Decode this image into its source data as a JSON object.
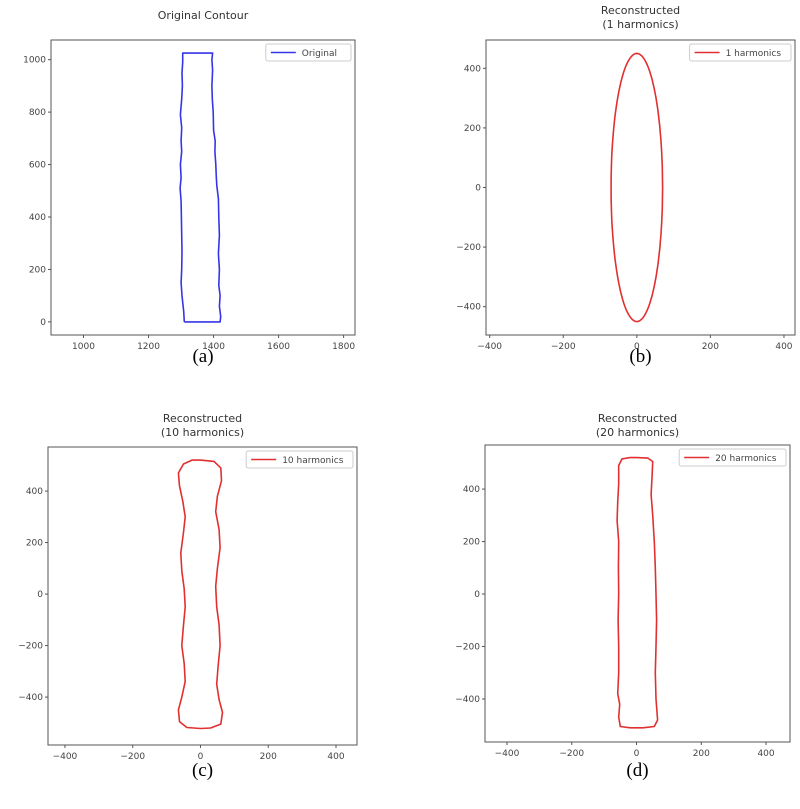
{
  "chart_data": [
    {
      "id": "a",
      "type": "line",
      "caption": "(a)",
      "title_lines": [
        "Original Contour"
      ],
      "legend": {
        "label": "Original",
        "placement": "upper-right"
      },
      "color": "#3535e8",
      "xlim": [
        900,
        1835
      ],
      "ylim": [
        -50,
        1075
      ],
      "xticks": [
        1000,
        1200,
        1400,
        1600,
        1800
      ],
      "yticks": [
        0,
        200,
        400,
        600,
        800,
        1000
      ],
      "points": [
        [
          1310,
          0
        ],
        [
          1420,
          0
        ],
        [
          1422,
          20
        ],
        [
          1418,
          60
        ],
        [
          1420,
          100
        ],
        [
          1416,
          140
        ],
        [
          1418,
          200
        ],
        [
          1415,
          260
        ],
        [
          1418,
          330
        ],
        [
          1416,
          400
        ],
        [
          1415,
          470
        ],
        [
          1410,
          520
        ],
        [
          1408,
          560
        ],
        [
          1407,
          600
        ],
        [
          1404,
          650
        ],
        [
          1405,
          690
        ],
        [
          1400,
          730
        ],
        [
          1399,
          800
        ],
        [
          1396,
          850
        ],
        [
          1395,
          900
        ],
        [
          1397,
          960
        ],
        [
          1395,
          1000
        ],
        [
          1397,
          1025
        ],
        [
          1305,
          1025
        ],
        [
          1305,
          990
        ],
        [
          1303,
          950
        ],
        [
          1304,
          900
        ],
        [
          1302,
          850
        ],
        [
          1298,
          790
        ],
        [
          1302,
          740
        ],
        [
          1300,
          690
        ],
        [
          1302,
          650
        ],
        [
          1298,
          600
        ],
        [
          1300,
          550
        ],
        [
          1297,
          510
        ],
        [
          1300,
          460
        ],
        [
          1301,
          400
        ],
        [
          1302,
          330
        ],
        [
          1303,
          270
        ],
        [
          1302,
          200
        ],
        [
          1300,
          150
        ],
        [
          1303,
          100
        ],
        [
          1308,
          40
        ],
        [
          1310,
          0
        ]
      ]
    },
    {
      "id": "b",
      "type": "line",
      "caption": "(b)",
      "title_lines": [
        "Reconstructed",
        "(1 harmonics)"
      ],
      "legend": {
        "label": "1 harmonics",
        "placement": "upper-right"
      },
      "color": "#e03030",
      "xlim": [
        -410,
        430
      ],
      "ylim": [
        -495,
        495
      ],
      "xticks": [
        -400,
        -200,
        0,
        200,
        400
      ],
      "yticks": [
        -400,
        -200,
        0,
        200,
        400
      ],
      "ellipse": {
        "center": [
          0,
          0
        ],
        "semi_axes": [
          70,
          450
        ]
      }
    },
    {
      "id": "c",
      "type": "line",
      "caption": "(c)",
      "title_lines": [
        "Reconstructed",
        "(10 harmonics)"
      ],
      "legend": {
        "label": "10 harmonics",
        "placement": "upper-right"
      },
      "color": "#e03030",
      "xlim": [
        -450,
        462
      ],
      "ylim": [
        -586,
        571
      ],
      "xticks": [
        -400,
        -200,
        0,
        200,
        400
      ],
      "yticks": [
        -400,
        -200,
        0,
        200,
        400
      ],
      "points": [
        [
          0,
          520
        ],
        [
          40,
          515
        ],
        [
          60,
          490
        ],
        [
          62,
          440
        ],
        [
          50,
          380
        ],
        [
          45,
          320
        ],
        [
          55,
          250
        ],
        [
          58,
          180
        ],
        [
          50,
          100
        ],
        [
          45,
          30
        ],
        [
          48,
          -50
        ],
        [
          55,
          -120
        ],
        [
          58,
          -200
        ],
        [
          52,
          -280
        ],
        [
          48,
          -350
        ],
        [
          55,
          -410
        ],
        [
          65,
          -460
        ],
        [
          60,
          -505
        ],
        [
          30,
          -520
        ],
        [
          0,
          -522
        ],
        [
          -40,
          -518
        ],
        [
          -62,
          -495
        ],
        [
          -65,
          -450
        ],
        [
          -55,
          -400
        ],
        [
          -45,
          -340
        ],
        [
          -48,
          -270
        ],
        [
          -55,
          -200
        ],
        [
          -50,
          -120
        ],
        [
          -45,
          -50
        ],
        [
          -48,
          20
        ],
        [
          -55,
          90
        ],
        [
          -58,
          160
        ],
        [
          -50,
          240
        ],
        [
          -45,
          300
        ],
        [
          -52,
          360
        ],
        [
          -62,
          420
        ],
        [
          -65,
          470
        ],
        [
          -50,
          505
        ],
        [
          -25,
          520
        ],
        [
          0,
          520
        ]
      ]
    },
    {
      "id": "d",
      "type": "line",
      "caption": "(d)",
      "title_lines": [
        "Reconstructed",
        "(20 harmonics)"
      ],
      "legend": {
        "label": "20 harmonics",
        "placement": "upper-right"
      },
      "color": "#e03030",
      "xlim": [
        -468,
        474
      ],
      "ylim": [
        -564,
        568
      ],
      "xticks": [
        -400,
        -200,
        0,
        200,
        400
      ],
      "yticks": [
        -400,
        -200,
        0,
        200,
        400
      ],
      "points": [
        [
          0,
          520
        ],
        [
          35,
          518
        ],
        [
          50,
          505
        ],
        [
          48,
          450
        ],
        [
          45,
          380
        ],
        [
          50,
          300
        ],
        [
          55,
          200
        ],
        [
          58,
          100
        ],
        [
          60,
          0
        ],
        [
          62,
          -100
        ],
        [
          60,
          -200
        ],
        [
          58,
          -300
        ],
        [
          60,
          -400
        ],
        [
          65,
          -480
        ],
        [
          55,
          -505
        ],
        [
          20,
          -510
        ],
        [
          -20,
          -510
        ],
        [
          -50,
          -505
        ],
        [
          -55,
          -470
        ],
        [
          -52,
          -420
        ],
        [
          -58,
          -380
        ],
        [
          -55,
          -300
        ],
        [
          -55,
          -200
        ],
        [
          -57,
          -100
        ],
        [
          -55,
          0
        ],
        [
          -56,
          100
        ],
        [
          -55,
          200
        ],
        [
          -60,
          280
        ],
        [
          -58,
          350
        ],
        [
          -55,
          420
        ],
        [
          -55,
          490
        ],
        [
          -45,
          515
        ],
        [
          -20,
          520
        ],
        [
          0,
          520
        ]
      ]
    }
  ]
}
